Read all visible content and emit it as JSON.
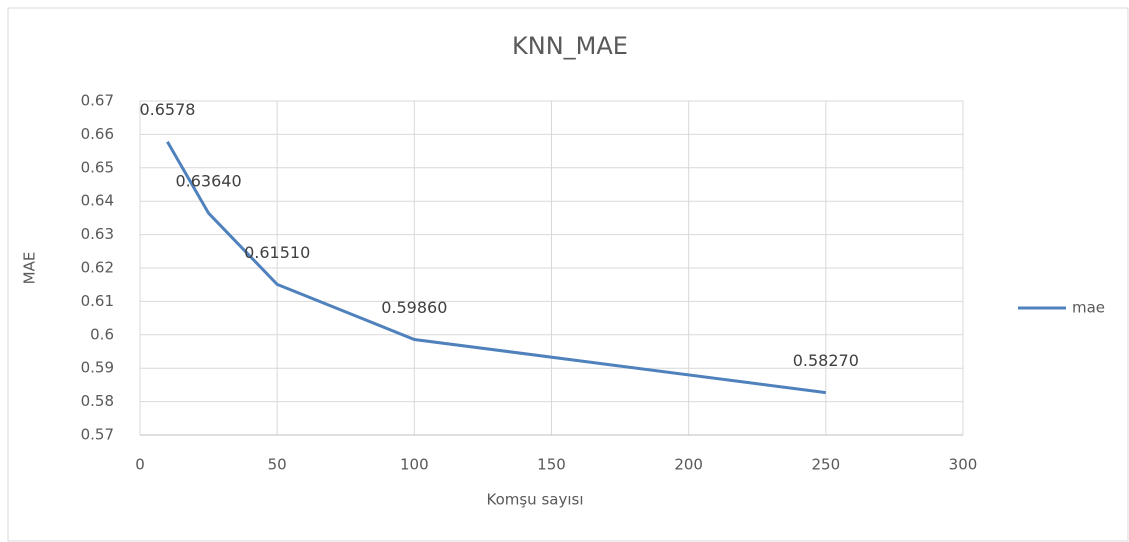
{
  "chart_data": {
    "type": "line",
    "title": "KNN_MAE",
    "x": [
      10,
      25,
      50,
      100,
      250
    ],
    "series": [
      {
        "name": "mae",
        "color": "#4f81bd",
        "values": [
          0.6578,
          0.6364,
          0.6151,
          0.5986,
          0.5827
        ],
        "value_labels": [
          "0.6578",
          "0.63640",
          "0.61510",
          "0.59860",
          "0.58270"
        ]
      }
    ],
    "xlabel": "Komşu sayısı",
    "ylabel": "MAE",
    "xlim": [
      0,
      300
    ],
    "xticks": [
      0,
      50,
      100,
      150,
      200,
      250,
      300
    ],
    "ylim": [
      0.57,
      0.67
    ],
    "yticks": [
      0.57,
      0.58,
      0.59,
      0.6,
      0.61,
      0.62,
      0.63,
      0.64,
      0.65,
      0.66,
      0.67
    ],
    "grid": true,
    "legend": "right"
  }
}
